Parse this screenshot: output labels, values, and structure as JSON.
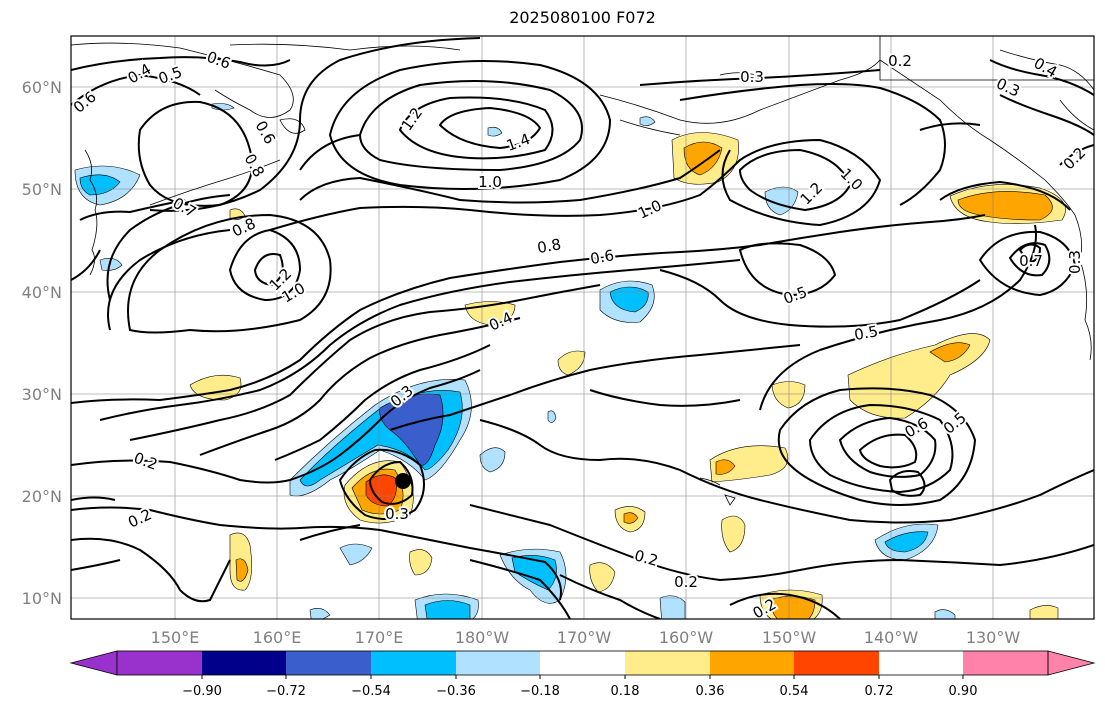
{
  "title": "2025080100 F072",
  "lat_labels": [
    "60°N",
    "50°N",
    "40°N",
    "30°N",
    "20°N",
    "10°N"
  ],
  "lon_labels": [
    "150°E",
    "160°E",
    "170°E",
    "180°W",
    "170°W",
    "160°W",
    "150°W",
    "140°W",
    "130°W"
  ],
  "colorbar": {
    "colors": [
      "#9932cc",
      "#00008b",
      "#3a5fcd",
      "#00bfff",
      "#b0e2ff",
      "#ffffff",
      "#ffec8b",
      "#ffa500",
      "#ff4500",
      "#b22222",
      "#ff82ab"
    ],
    "tick_labels": [
      "−0.90",
      "−0.72",
      "−0.54",
      "−0.36",
      "−0.18",
      "0.18",
      "0.36",
      "0.54",
      "0.72",
      "0.90"
    ]
  },
  "contour_labels": [
    "0.4",
    "0.5",
    "0.6",
    "0.6",
    "0.6",
    "0.8",
    "0.7",
    "0.8",
    "1.2",
    "1.0",
    "1.2",
    "1.4",
    "1.0",
    "0.3",
    "0.2",
    "0.4",
    "0.3",
    "0.2",
    "1.0",
    "1.0",
    "1.2",
    "0.8",
    "0.6",
    "0.5",
    "0.4",
    "0.5",
    "0.3",
    "0.2",
    "0.2",
    "0.3",
    "0.2",
    "0.2",
    "0.6",
    "0.5",
    "0.2",
    "0.7",
    "0.3"
  ],
  "marker": {
    "name": "storm-center",
    "color": "#000000"
  }
}
